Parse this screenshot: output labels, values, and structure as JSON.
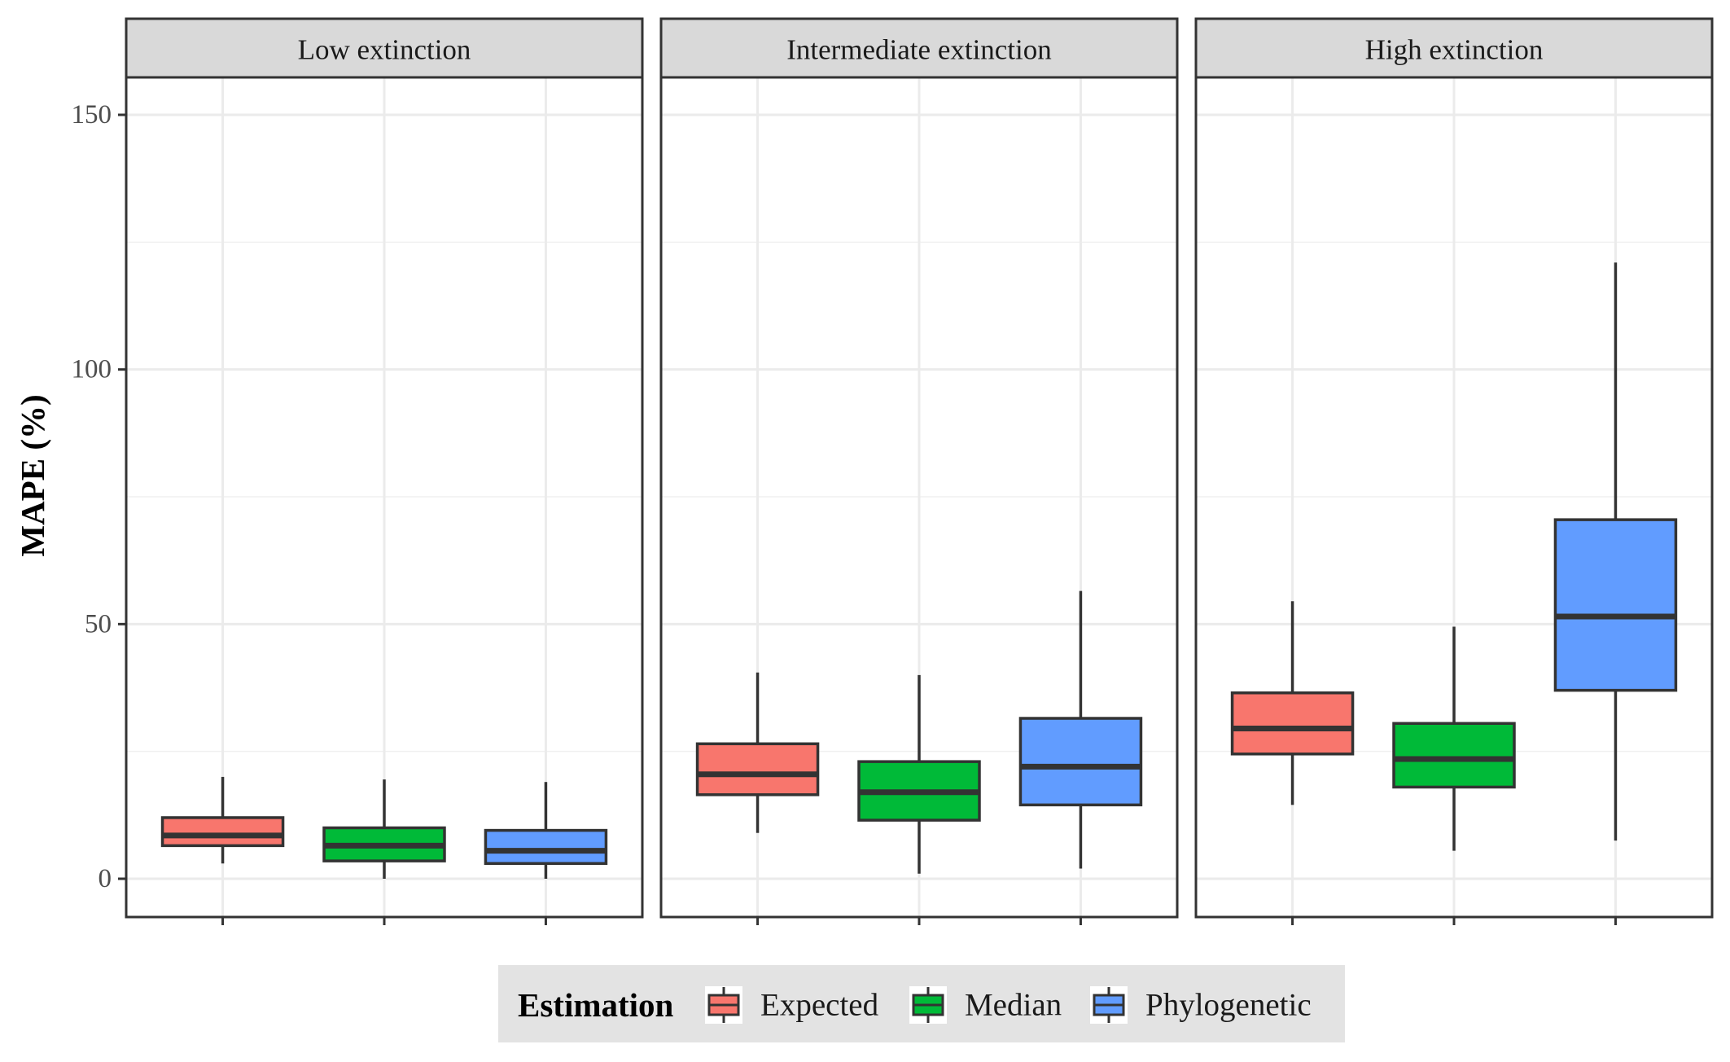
{
  "chart_data": {
    "type": "boxplot",
    "facet_by": "extinction",
    "panels": [
      {
        "title": "Low extinction",
        "boxes": [
          {
            "estimation": "Expected",
            "whisker_low": 3,
            "q1": 6.5,
            "median": 8.5,
            "q3": 12,
            "whisker_high": 20
          },
          {
            "estimation": "Median",
            "whisker_low": 0,
            "q1": 3.5,
            "median": 6.5,
            "q3": 10,
            "whisker_high": 19.5
          },
          {
            "estimation": "Phylogenetic",
            "whisker_low": 0,
            "q1": 3,
            "median": 5.5,
            "q3": 9.5,
            "whisker_high": 19
          }
        ]
      },
      {
        "title": "Intermediate extinction",
        "boxes": [
          {
            "estimation": "Expected",
            "whisker_low": 9,
            "q1": 16.5,
            "median": 20.5,
            "q3": 26.5,
            "whisker_high": 40.5
          },
          {
            "estimation": "Median",
            "whisker_low": 1,
            "q1": 11.5,
            "median": 17,
            "q3": 23,
            "whisker_high": 40
          },
          {
            "estimation": "Phylogenetic",
            "whisker_low": 2,
            "q1": 14.5,
            "median": 22,
            "q3": 31.5,
            "whisker_high": 56.5
          }
        ]
      },
      {
        "title": "High extinction",
        "boxes": [
          {
            "estimation": "Expected",
            "whisker_low": 14.5,
            "q1": 24.5,
            "median": 29.5,
            "q3": 36.5,
            "whisker_high": 54.5
          },
          {
            "estimation": "Median",
            "whisker_low": 5.5,
            "q1": 18,
            "median": 23.5,
            "q3": 30.5,
            "whisker_high": 49.5
          },
          {
            "estimation": "Phylogenetic",
            "whisker_low": 7.5,
            "q1": 37,
            "median": 51.5,
            "q3": 70.5,
            "whisker_high": 121
          }
        ]
      }
    ],
    "ylabel": "MAPE (%)",
    "xlabel": "",
    "ylim": [
      -7,
      164
    ],
    "yticks": [
      0,
      50,
      100,
      150
    ],
    "grid": true,
    "theme": "bw",
    "legend": {
      "title": "Estimation",
      "position": "bottom",
      "entries": [
        {
          "name": "Expected",
          "color": "#F8766D"
        },
        {
          "name": "Median",
          "color": "#00BA38"
        },
        {
          "name": "Phylogenetic",
          "color": "#619CFF"
        }
      ]
    },
    "colors": {
      "Expected": "#F8766D",
      "Median": "#00BA38",
      "Phylogenetic": "#619CFF"
    }
  }
}
